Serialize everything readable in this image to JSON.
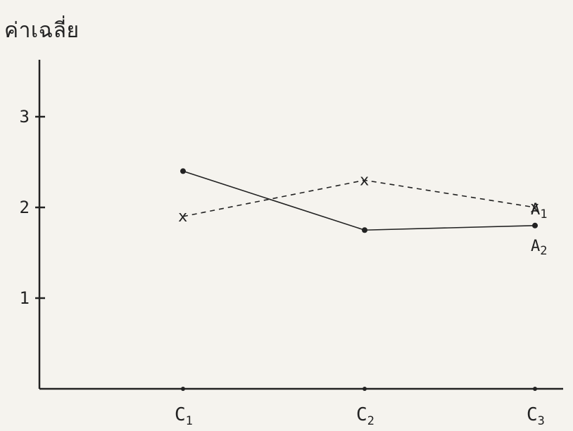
{
  "chart_data": {
    "type": "line",
    "title": "",
    "xlabel": "",
    "ylabel": "ค่าเฉลี่ย",
    "categories": [
      "C1",
      "C2",
      "C3"
    ],
    "yticks": [
      1,
      2,
      3
    ],
    "ylim": [
      0,
      3.6
    ],
    "series": [
      {
        "name": "A1",
        "values": [
          1.9,
          2.3,
          2.0
        ],
        "style": "dashed",
        "marker": "x",
        "color": "#222222"
      },
      {
        "name": "A2",
        "values": [
          2.4,
          1.75,
          1.8
        ],
        "style": "solid",
        "marker": "dot",
        "color": "#222222"
      }
    ],
    "grid": false,
    "legend": "labels at right end of lines"
  }
}
